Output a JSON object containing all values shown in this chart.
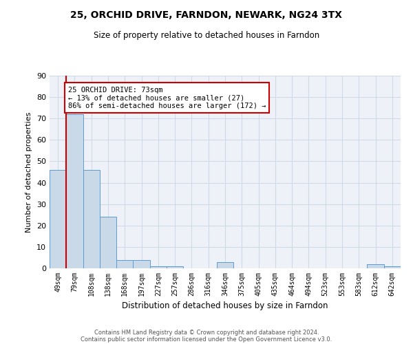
{
  "title": "25, ORCHID DRIVE, FARNDON, NEWARK, NG24 3TX",
  "subtitle": "Size of property relative to detached houses in Farndon",
  "xlabel": "Distribution of detached houses by size in Farndon",
  "ylabel": "Number of detached properties",
  "categories": [
    "49sqm",
    "79sqm",
    "108sqm",
    "138sqm",
    "168sqm",
    "197sqm",
    "227sqm",
    "257sqm",
    "286sqm",
    "316sqm",
    "346sqm",
    "375sqm",
    "405sqm",
    "435sqm",
    "464sqm",
    "494sqm",
    "523sqm",
    "553sqm",
    "583sqm",
    "612sqm",
    "642sqm"
  ],
  "values": [
    46,
    72,
    46,
    24,
    4,
    4,
    1,
    1,
    0,
    0,
    3,
    0,
    0,
    0,
    0,
    0,
    0,
    0,
    0,
    2,
    1
  ],
  "bar_color": "#c9d9e8",
  "bar_edge_color": "#5b9bd5",
  "annotation_text": "25 ORCHID DRIVE: 73sqm\n← 13% of detached houses are smaller (27)\n86% of semi-detached houses are larger (172) →",
  "annotation_box_color": "#ffffff",
  "annotation_box_edge_color": "#cc0000",
  "vline_color": "#cc0000",
  "ylim": [
    0,
    90
  ],
  "yticks": [
    0,
    10,
    20,
    30,
    40,
    50,
    60,
    70,
    80,
    90
  ],
  "grid_color": "#d0d8e8",
  "bg_color": "#eef2f8",
  "footer1": "Contains HM Land Registry data © Crown copyright and database right 2024.",
  "footer2": "Contains public sector information licensed under the Open Government Licence v3.0."
}
